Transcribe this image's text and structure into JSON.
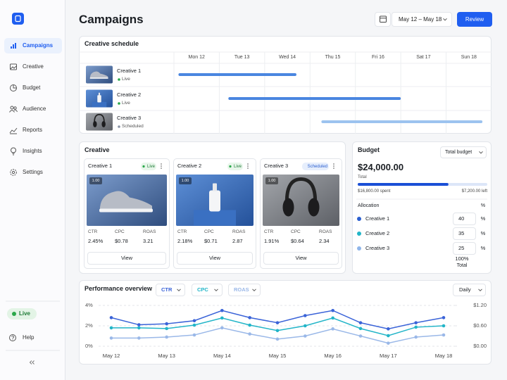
{
  "sidebar": {
    "nav": [
      "Campaigns",
      "Creative",
      "Budget",
      "Audience",
      "Reports",
      "Insights",
      "Settings"
    ],
    "status": "Live",
    "help": "Help"
  },
  "header": {
    "title": "Campaigns",
    "date_range": "May 12 – May 18",
    "button": "Review"
  },
  "schedule": {
    "title": "Creative schedule",
    "days": [
      "Mon 12",
      "Tue 13",
      "Wed 14",
      "Thu 15",
      "Fri 16",
      "Sat 17",
      "Sun 18"
    ],
    "rows": [
      {
        "name": "Creative 1",
        "status": "Live",
        "start": 0.1,
        "end": 2.7,
        "color": "#4a86e0",
        "dot_color": "#2aa84a"
      },
      {
        "name": "Creative 2",
        "status": "Live",
        "start": 1.2,
        "end": 5.0,
        "color": "#4a86e0",
        "dot_color": "#2aa84a"
      },
      {
        "name": "Creative 3",
        "status": "Scheduled",
        "start": 3.25,
        "end": 6.8,
        "color": "#9cc3ef",
        "dot_color": "#8a94a6"
      }
    ]
  },
  "creative": {
    "title": "Creative",
    "cards": [
      {
        "name": "Creative 1",
        "status": "Live",
        "badge": "1.00",
        "metrics": [
          {
            "label": "CTR",
            "value": "2.45%"
          },
          {
            "label": "CPC",
            "value": "$0.78"
          },
          {
            "label": "ROAS",
            "value": "3.21"
          }
        ],
        "button": "View"
      },
      {
        "name": "Creative 2",
        "status": "Live",
        "badge": "1.00",
        "metrics": [
          {
            "label": "CTR",
            "value": "2.18%"
          },
          {
            "label": "CPC",
            "value": "$0.71"
          },
          {
            "label": "ROAS",
            "value": "2.87"
          }
        ],
        "button": "View"
      },
      {
        "name": "Creative 3",
        "status": "Scheduled",
        "badge": "1.00",
        "metrics": [
          {
            "label": "CTR",
            "value": "1.91%"
          },
          {
            "label": "CPC",
            "value": "$0.64"
          },
          {
            "label": "ROAS",
            "value": "2.34"
          }
        ],
        "button": "View"
      }
    ]
  },
  "budget": {
    "title": "Budget",
    "selector": "Total budget",
    "amount": "$24,000.00",
    "amount_label": "Total",
    "progress": 70,
    "spent": "$16,800.00 spent",
    "left": "$7,200.00 left",
    "allocation_title": "Allocation",
    "unit": "%",
    "allocation": [
      {
        "name": "Creative 1",
        "value": 40,
        "color": "#2b5fd0"
      },
      {
        "name": "Creative 2",
        "value": 35,
        "color": "#22b5c8"
      },
      {
        "name": "Creative 3",
        "value": 25,
        "color": "#8fb5ea"
      }
    ],
    "total": "100%",
    "total_label": "Total"
  },
  "performance": {
    "title": "Performance overview",
    "period": "Daily"
  },
  "chart_data": {
    "type": "line",
    "x": [
      "May 12",
      null,
      "May 13",
      null,
      "May 14",
      null,
      "May 15",
      null,
      "May 16",
      null,
      "May 17",
      null,
      "May 18"
    ],
    "series": [
      {
        "name": "CTR",
        "color": "#3a63d8",
        "axis": "y",
        "values": [
          2.8,
          2.1,
          2.2,
          2.5,
          3.5,
          2.8,
          2.3,
          3.0,
          3.5,
          2.3,
          1.7,
          2.3,
          2.8
        ]
      },
      {
        "name": "CPC",
        "color": "#22b5c8",
        "axis": "y2",
        "values": [
          0.54,
          0.54,
          0.52,
          0.62,
          0.83,
          0.62,
          0.46,
          0.6,
          0.83,
          0.52,
          0.31,
          0.56,
          0.6
        ]
      },
      {
        "name": "ROAS",
        "color": "#9ab8e8",
        "axis": "y",
        "values": [
          0.8,
          0.8,
          0.9,
          1.1,
          1.8,
          1.2,
          0.7,
          1.0,
          1.7,
          1.0,
          0.3,
          0.9,
          1.1
        ]
      }
    ],
    "ylim": [
      0,
      4
    ],
    "yticks": [
      {
        "value": 0,
        "label": "0%"
      },
      {
        "value": 2,
        "label": "2%"
      },
      {
        "value": 4,
        "label": "4%"
      }
    ],
    "y2lim": [
      0,
      1.2
    ],
    "y2ticks": [
      {
        "value": 0,
        "label": "$0.00"
      },
      {
        "value": 0.6,
        "label": "$0.60"
      },
      {
        "value": 1.2,
        "label": "$1.20"
      }
    ],
    "grid": true
  }
}
